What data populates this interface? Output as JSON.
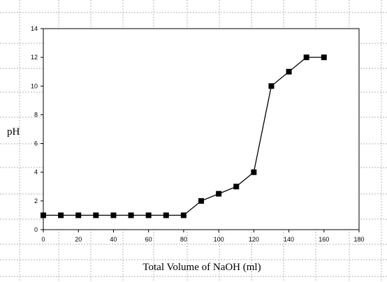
{
  "chart_data": {
    "type": "line",
    "title": "",
    "xlabel": "Total Volume of NaOH (ml)",
    "ylabel": "pH",
    "xlim": [
      0,
      180
    ],
    "ylim": [
      0,
      14
    ],
    "x_ticks": [
      0,
      20,
      40,
      60,
      80,
      100,
      120,
      140,
      160,
      180
    ],
    "y_ticks": [
      0,
      2,
      4,
      6,
      8,
      10,
      12,
      14
    ],
    "grid": false,
    "legend": "none",
    "marker": "square",
    "colors": {
      "line": "#000000",
      "marker": "#000000",
      "frame": "#000000",
      "outer_dashes": "#9a9a9a"
    },
    "x": [
      0,
      10,
      20,
      30,
      40,
      50,
      60,
      70,
      80,
      90,
      100,
      110,
      120,
      130,
      140,
      150,
      160
    ],
    "values": [
      1,
      1,
      1,
      1,
      1,
      1,
      1,
      1,
      1,
      2,
      2.5,
      3,
      4,
      10,
      11,
      12,
      12
    ]
  }
}
